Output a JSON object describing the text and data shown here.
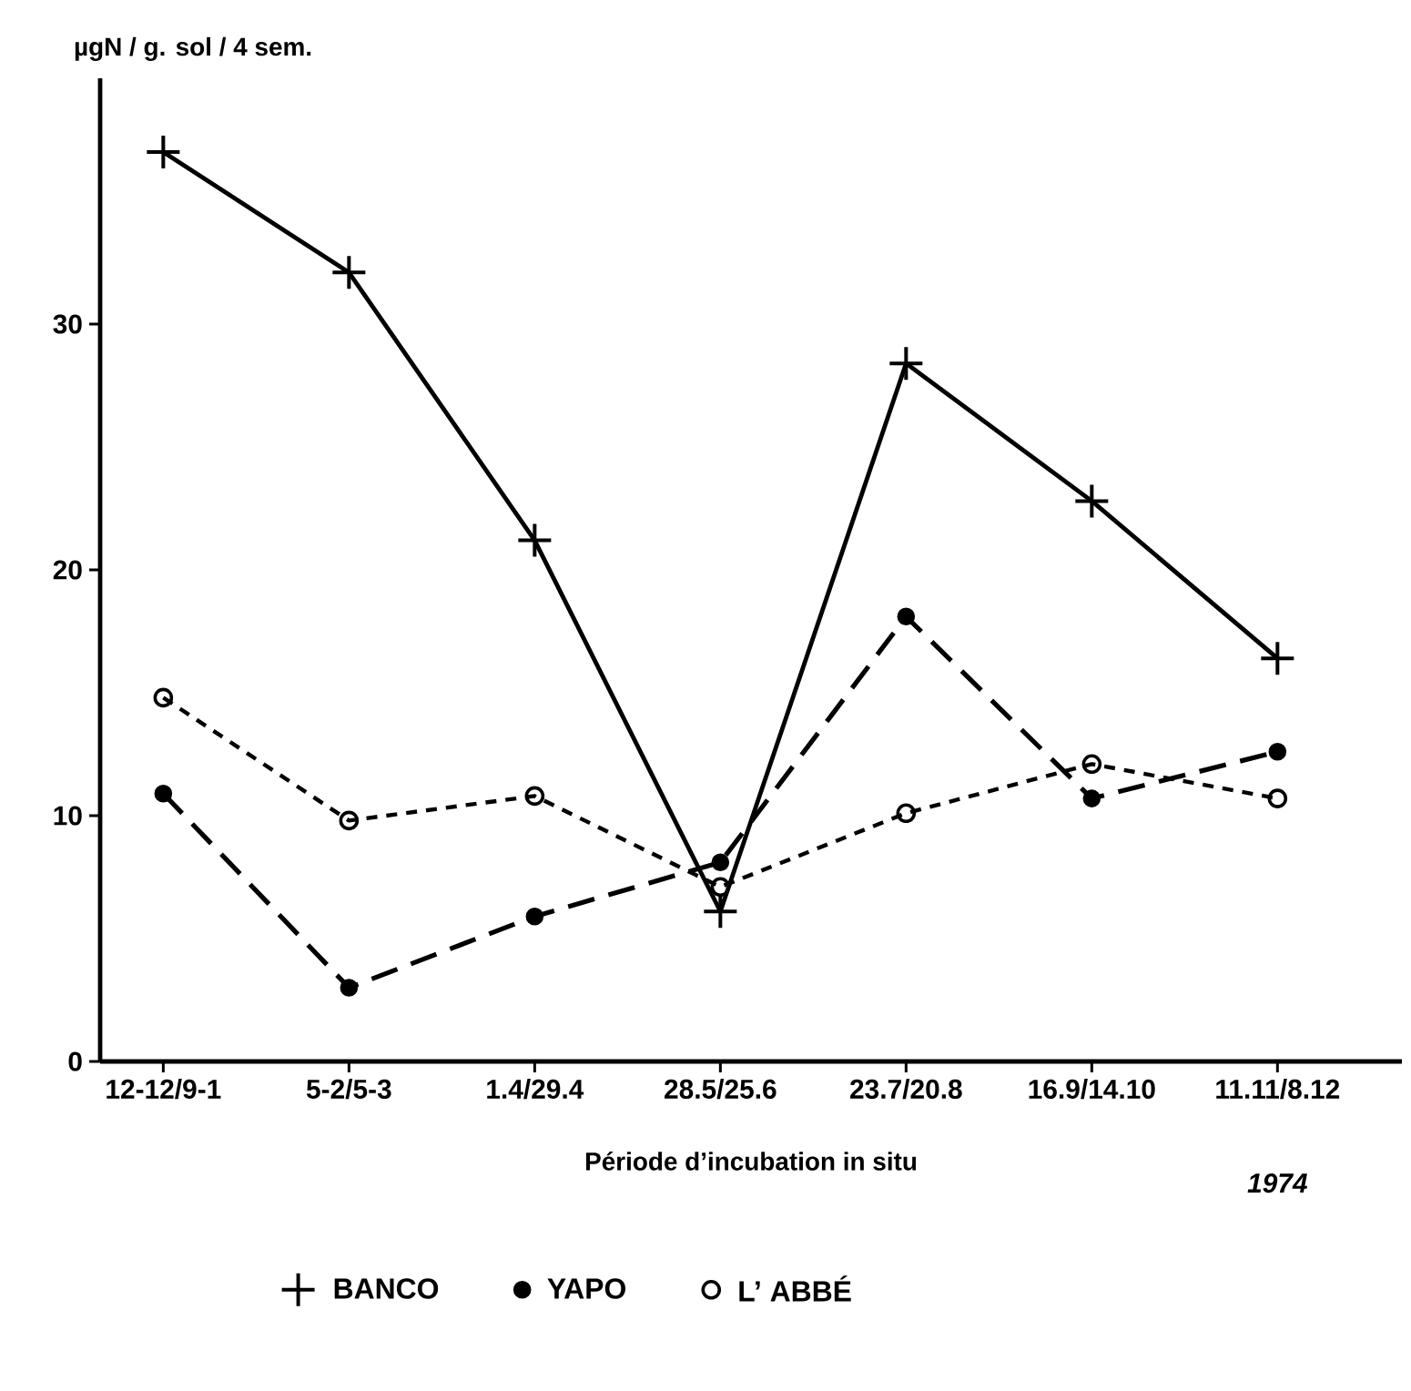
{
  "chart_data": {
    "type": "line",
    "ylabel": "µgN / g. sol / 4 sem.",
    "xlabel": "Période d’incubation in situ",
    "categories": [
      "12-12/9-1",
      "5-2/5-3",
      "1.4/29.4",
      "28.5/25.6",
      "23.7/20.8",
      "16.9/14.10",
      "11.11/8.12"
    ],
    "series": [
      {
        "name": "BANCO",
        "color": "#000000",
        "marker": "cross",
        "line_style": "solid",
        "values": [
          37.0,
          32.1,
          21.2,
          6.1,
          28.4,
          22.8,
          16.4
        ]
      },
      {
        "name": "YAPO",
        "color": "#000000",
        "marker": "circle",
        "line_style": "dashed",
        "values": [
          10.9,
          3.0,
          5.9,
          8.1,
          18.1,
          10.7,
          12.6
        ]
      },
      {
        "name": "L’ ABBÉ",
        "color": "#000000",
        "marker": "circle",
        "line_style": "dotted",
        "values": [
          14.8,
          9.8,
          10.8,
          7.1,
          10.1,
          12.1,
          10.7
        ]
      }
    ],
    "ylim": [
      0,
      40
    ],
    "yticks": [
      0,
      10,
      20,
      30
    ],
    "legend": "bottom",
    "annotations": [
      "1974"
    ]
  }
}
